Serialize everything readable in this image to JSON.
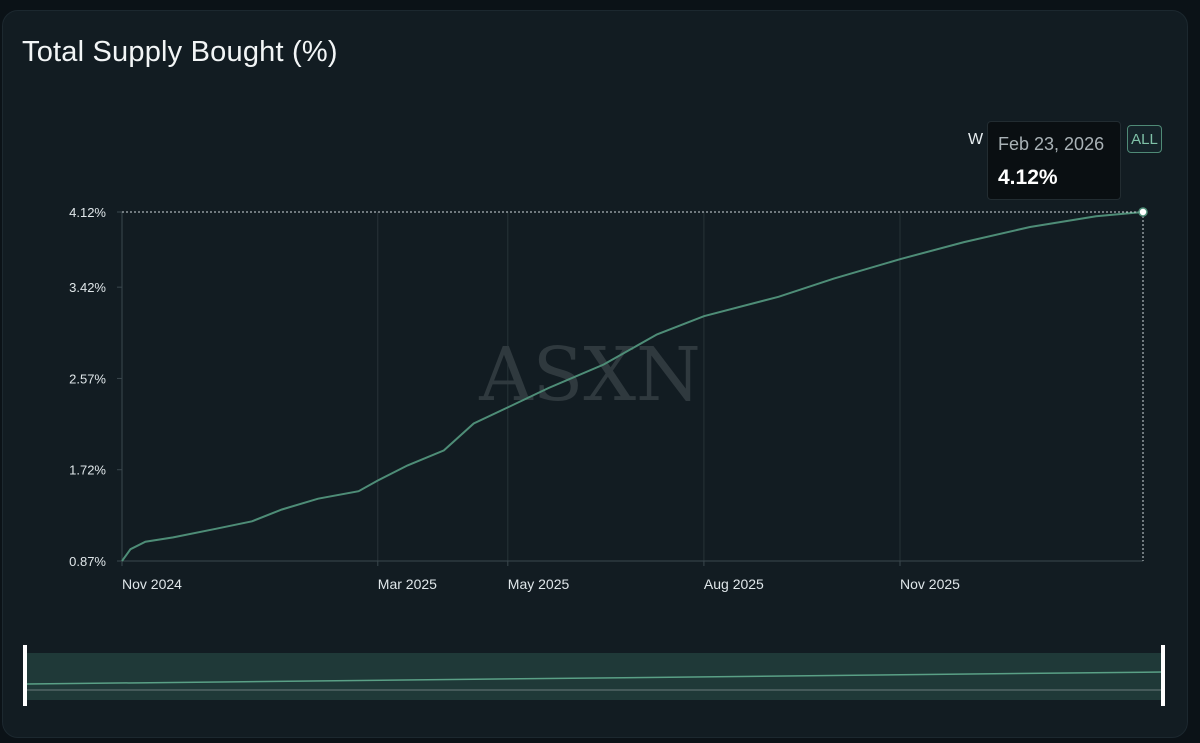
{
  "chart_data": {
    "type": "line",
    "title": "Total Supply Bought (%)",
    "y_ticks": [
      "4.12%",
      "3.42%",
      "2.57%",
      "1.72%",
      "0.87%"
    ],
    "y_tick_values": [
      4.12,
      3.42,
      2.57,
      1.72,
      0.87
    ],
    "ylim": [
      0.87,
      4.12
    ],
    "x_ticks": [
      {
        "label": "Nov 2024",
        "date": "2024-11-01"
      },
      {
        "label": "Mar 2025",
        "date": "2025-03-01"
      },
      {
        "label": "May 2025",
        "date": "2025-05-01"
      },
      {
        "label": "Aug 2025",
        "date": "2025-08-01"
      },
      {
        "label": "Nov 2025",
        "date": "2025-11-01"
      }
    ],
    "xlim": [
      "2024-11-01",
      "2026-02-23"
    ],
    "grid": {
      "vertical": true,
      "horizontal": false
    },
    "line_color": "#4e8d77",
    "series": [
      {
        "points": [
          [
            "2024-11-01",
            0.87
          ],
          [
            "2024-11-05",
            0.98
          ],
          [
            "2024-11-12",
            1.05
          ],
          [
            "2024-11-25",
            1.09
          ],
          [
            "2024-12-15",
            1.17
          ],
          [
            "2025-01-01",
            1.24
          ],
          [
            "2025-01-15",
            1.35
          ],
          [
            "2025-02-01",
            1.45
          ],
          [
            "2025-02-20",
            1.52
          ],
          [
            "2025-03-01",
            1.62
          ],
          [
            "2025-03-15",
            1.76
          ],
          [
            "2025-04-01",
            1.9
          ],
          [
            "2025-04-15",
            2.15
          ],
          [
            "2025-05-01",
            2.3
          ],
          [
            "2025-05-20",
            2.48
          ],
          [
            "2025-06-15",
            2.7
          ],
          [
            "2025-07-10",
            2.98
          ],
          [
            "2025-08-01",
            3.15
          ],
          [
            "2025-09-05",
            3.33
          ],
          [
            "2025-10-01",
            3.5
          ],
          [
            "2025-11-01",
            3.68
          ],
          [
            "2025-12-01",
            3.84
          ],
          [
            "2026-01-01",
            3.98
          ],
          [
            "2026-02-01",
            4.08
          ],
          [
            "2026-02-23",
            4.12
          ]
        ]
      }
    ],
    "watermark": "ASXN"
  },
  "controls": {
    "range_label_partial": "W",
    "all_label": "ALL"
  },
  "tooltip": {
    "date": "Feb 23, 2026",
    "value": "4.12%"
  }
}
